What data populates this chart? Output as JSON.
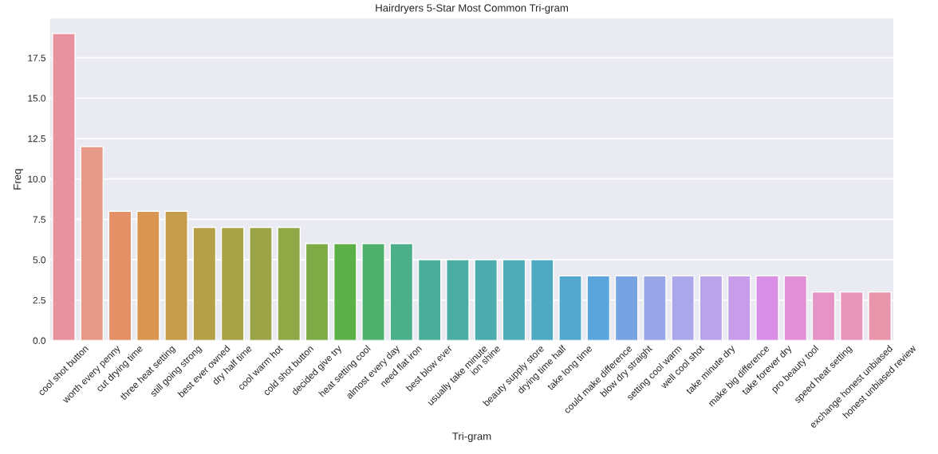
{
  "chart_data": {
    "type": "bar",
    "title": "Hairdryers 5-Star Most Common Tri-gram",
    "xlabel": "Tri-gram",
    "ylabel": "Freq",
    "categories": [
      "cool shot button",
      "worth every penny",
      "cut drying time",
      "three heat setting",
      "still going strong",
      "best ever owned",
      "dry half time",
      "cool warm hot",
      "cold shot button",
      "decided give try",
      "heat setting cool",
      "almost every day",
      "need flat iron",
      "best blow ever",
      "usually take minute",
      "ion shine",
      "beauty supply store",
      "drying time half",
      "take long time",
      "could make difference",
      "blow dry straight",
      "setting cool warm",
      "well cool shot",
      "take minute dry",
      "make big difference",
      "take forever dry",
      "pro beauty tool",
      "speed heat setting",
      "exchange honest unbiased",
      "honest unbiased review"
    ],
    "values": [
      19,
      12,
      8,
      8,
      8,
      7,
      7,
      7,
      7,
      6,
      6,
      6,
      6,
      5,
      5,
      5,
      5,
      5,
      4,
      4,
      4,
      4,
      4,
      4,
      4,
      4,
      4,
      3,
      3,
      3
    ],
    "colors": [
      "#e8929f",
      "#e89a8a",
      "#e48f66",
      "#d89650",
      "#c59c4a",
      "#b5a048",
      "#a9a347",
      "#9ba547",
      "#91a847",
      "#7fab47",
      "#5daf47",
      "#4eb06c",
      "#4bb08a",
      "#4bae9a",
      "#4bada4",
      "#4cacad",
      "#4dabb7",
      "#4eaac2",
      "#52a8cd",
      "#5aa6dc",
      "#78a3e3",
      "#98a6e8",
      "#aaa8ea",
      "#b9a4eb",
      "#c79deb",
      "#d98fe6",
      "#e38fd8",
      "#e693c6",
      "#e896b8",
      "#e894aa"
    ],
    "ylim": [
      0,
      19.95
    ],
    "yticks": [
      {
        "value": 0,
        "label": "0.0"
      },
      {
        "value": 2.5,
        "label": "2.5"
      },
      {
        "value": 5,
        "label": "5.0"
      },
      {
        "value": 7.5,
        "label": "7.5"
      },
      {
        "value": 10,
        "label": "10.0"
      },
      {
        "value": 12.5,
        "label": "12.5"
      },
      {
        "value": 15,
        "label": "15.0"
      },
      {
        "value": 17.5,
        "label": "17.5"
      }
    ],
    "grid": "y"
  }
}
